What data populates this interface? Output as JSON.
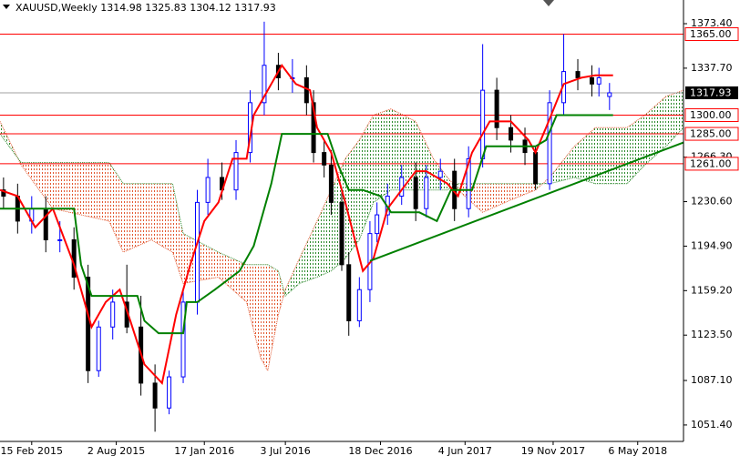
{
  "chart_data": {
    "type": "candlestick",
    "title": "XAUUSD,Weekly  1314.98 1325.83 1304.12 1317.93",
    "xlim": [
      -9,
      185
    ],
    "ylim": [
      1038.2,
      1392.4
    ],
    "xticks": [
      {
        "value": 0,
        "label": "15 Feb 2015"
      },
      {
        "value": 24,
        "label": "2 Aug 2015"
      },
      {
        "value": 49,
        "label": "17 Jan 2016"
      },
      {
        "value": 72,
        "label": "3 Jul 2016"
      },
      {
        "value": 99,
        "label": "18 Dec 2016"
      },
      {
        "value": 123,
        "label": "4 Jun 2017"
      },
      {
        "value": 148,
        "label": "19 Nov 2017"
      },
      {
        "value": 172,
        "label": "6 May 2018"
      }
    ],
    "yticks": [
      {
        "value": 1373.4,
        "label": "1373.40"
      },
      {
        "value": 1337.7,
        "label": "1337.70"
      },
      {
        "value": 1266.3,
        "label": "1266.30"
      },
      {
        "value": 1230.6,
        "label": "1230.60"
      },
      {
        "value": 1194.9,
        "label": "1194.90"
      },
      {
        "value": 1159.2,
        "label": "1159.20"
      },
      {
        "value": 1123.5,
        "label": "1123.50"
      },
      {
        "value": 1087.1,
        "label": "1087.10"
      },
      {
        "value": 1051.4,
        "label": "1051.40"
      }
    ],
    "up_color": "#0000ff",
    "down_color": "#000000",
    "candles": {
      "x": [
        -8,
        -4,
        0,
        4,
        8,
        12,
        16,
        19,
        23,
        27,
        31,
        35,
        39,
        43,
        47,
        50,
        54,
        58,
        62,
        66,
        70,
        74,
        78,
        80,
        83,
        85,
        88,
        90,
        93,
        96,
        98,
        101,
        105,
        109,
        112,
        116,
        120,
        124,
        128,
        132,
        136,
        140,
        143,
        147,
        151,
        155,
        159,
        161,
        164
      ],
      "open": [
        1240,
        1235,
        1215,
        1225,
        1200,
        1200,
        1170,
        1095,
        1130,
        1150,
        1130,
        1085,
        1065,
        1090,
        1150,
        1230,
        1250,
        1240,
        1270,
        1310,
        1340,
        1330,
        1330,
        1310,
        1270,
        1260,
        1230,
        1180,
        1135,
        1160,
        1205,
        1220,
        1235,
        1250,
        1225,
        1250,
        1255,
        1225,
        1265,
        1320,
        1290,
        1280,
        1270,
        1245,
        1310,
        1335,
        1330,
        1325,
        1314.98
      ],
      "high": [
        1250,
        1245,
        1235,
        1235,
        1215,
        1210,
        1180,
        1135,
        1160,
        1180,
        1155,
        1100,
        1095,
        1160,
        1240,
        1265,
        1262,
        1280,
        1320,
        1375,
        1350,
        1345,
        1340,
        1320,
        1280,
        1272,
        1240,
        1190,
        1170,
        1215,
        1230,
        1245,
        1260,
        1262,
        1260,
        1265,
        1265,
        1275,
        1357,
        1330,
        1300,
        1290,
        1275,
        1320,
        1365,
        1345,
        1340,
        1338,
        1325.83
      ],
      "low": [
        1225,
        1205,
        1205,
        1190,
        1190,
        1160,
        1085,
        1090,
        1120,
        1125,
        1075,
        1046,
        1060,
        1085,
        1140,
        1220,
        1232,
        1232,
        1262,
        1300,
        1320,
        1318,
        1300,
        1262,
        1250,
        1220,
        1175,
        1123,
        1130,
        1150,
        1198,
        1212,
        1228,
        1215,
        1218,
        1240,
        1215,
        1218,
        1258,
        1280,
        1270,
        1260,
        1240,
        1240,
        1300,
        1320,
        1315,
        1315,
        1304.12
      ],
      "close": [
        1235,
        1215,
        1225,
        1200,
        1200,
        1170,
        1095,
        1130,
        1150,
        1130,
        1085,
        1065,
        1090,
        1150,
        1230,
        1250,
        1240,
        1270,
        1310,
        1340,
        1330,
        1330,
        1310,
        1270,
        1260,
        1230,
        1180,
        1135,
        1160,
        1205,
        1220,
        1235,
        1250,
        1225,
        1250,
        1255,
        1225,
        1265,
        1320,
        1290,
        1280,
        1270,
        1245,
        1310,
        1335,
        1330,
        1325,
        1330,
        1317.93
      ]
    },
    "series": [
      {
        "color": "#ff0000",
        "x": [
          -9,
          -4,
          1,
          6,
          12,
          17,
          21,
          25,
          28,
          32,
          37,
          41,
          45,
          49,
          53,
          57,
          61,
          63,
          67,
          71,
          75,
          79,
          81,
          85,
          89,
          94,
          97,
          101,
          105,
          109,
          112,
          118,
          121,
          125,
          130,
          136,
          141,
          143,
          146,
          151,
          156,
          160,
          165
        ],
        "values": [
          1240,
          1235,
          1210,
          1225,
          1180,
          1130,
          1150,
          1160,
          1135,
          1100,
          1085,
          1140,
          1180,
          1215,
          1230,
          1265,
          1265,
          1300,
          1320,
          1340,
          1325,
          1320,
          1290,
          1270,
          1230,
          1175,
          1185,
          1225,
          1240,
          1255,
          1255,
          1245,
          1235,
          1270,
          1295,
          1295,
          1280,
          1270,
          1290,
          1325,
          1330,
          1332,
          1332
        ]
      },
      {
        "color": "#008000",
        "x": [
          -9,
          1,
          12,
          14,
          17,
          30,
          32,
          36,
          43,
          44,
          47,
          52,
          59,
          63,
          68,
          71,
          84,
          87,
          90,
          94,
          99,
          102,
          110,
          115,
          119,
          125,
          129,
          143,
          146,
          149,
          165
        ],
        "values": [
          1225,
          1225,
          1225,
          1180,
          1155,
          1155,
          1135,
          1125,
          1125,
          1150,
          1150,
          1160,
          1175,
          1195,
          1245,
          1285,
          1285,
          1260,
          1240,
          1240,
          1235,
          1222,
          1222,
          1215,
          1240,
          1240,
          1275,
          1275,
          1280,
          1300,
          1300
        ]
      }
    ],
    "cloud": {
      "bull_color": "#2e8b2e",
      "bear_color": "#e2572f",
      "x": [
        -9,
        -3,
        6,
        22,
        26,
        34,
        40,
        43,
        53,
        61,
        65,
        67,
        70,
        72,
        76,
        81,
        85,
        89,
        93,
        97,
        102,
        109,
        114,
        118,
        121,
        128,
        136,
        143,
        147,
        154,
        160,
        169,
        174,
        180,
        185
      ],
      "span_a": [
        1295,
        1260,
        1225,
        1215,
        1190,
        1200,
        1190,
        1165,
        1170,
        1150,
        1105,
        1095,
        1140,
        1160,
        1185,
        1215,
        1240,
        1265,
        1280,
        1300,
        1305,
        1295,
        1265,
        1250,
        1240,
        1222,
        1232,
        1240,
        1250,
        1275,
        1290,
        1290,
        1300,
        1315,
        1320
      ],
      "span_b": [
        1285,
        1262,
        1262,
        1262,
        1245,
        1245,
        1245,
        1205,
        1190,
        1180,
        1180,
        1180,
        1175,
        1155,
        1165,
        1170,
        1175,
        1185,
        1200,
        1230,
        1240,
        1240,
        1240,
        1240,
        1245,
        1245,
        1245,
        1245,
        1245,
        1250,
        1245,
        1245,
        1260,
        1275,
        1290
      ]
    },
    "trend_line": {
      "color": "#008000",
      "x": [
        96,
        185
      ],
      "values": [
        1183,
        1278
      ]
    },
    "levels": {
      "color": "#ff0000",
      "values": [
        {
          "value": 1365,
          "label": "1365.00"
        },
        {
          "value": 1300,
          "label": "1300.00"
        },
        {
          "value": 1285,
          "label": "1285.00"
        },
        {
          "value": 1261,
          "label": "1261.00"
        }
      ]
    },
    "last_price": {
      "color": "#a0a0a0",
      "value": 1317.93,
      "label": "1317.93"
    }
  }
}
